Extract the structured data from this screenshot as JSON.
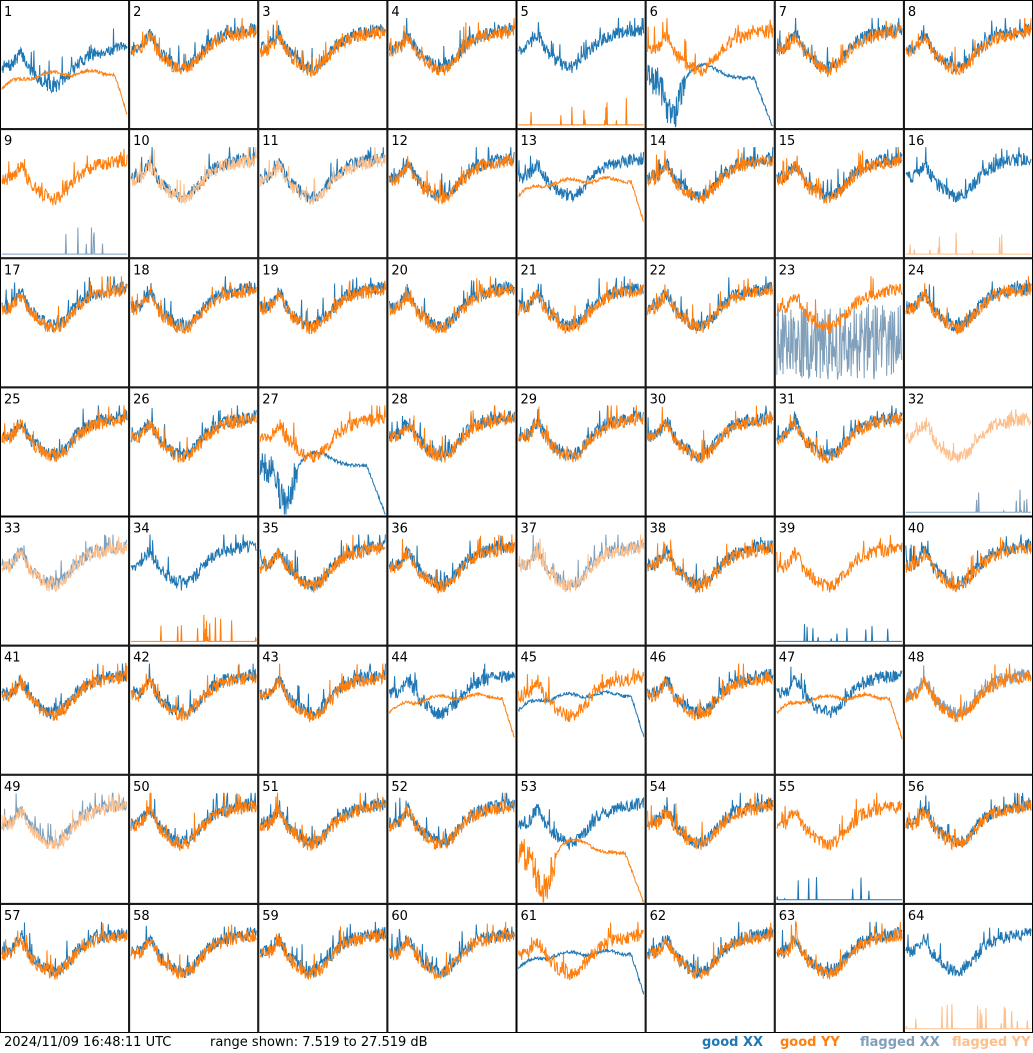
{
  "footer": {
    "timestamp": "2024/11/09 16:48:11 UTC",
    "range_text": "range shown: 7.519 to 27.519 dB"
  },
  "legend": [
    {
      "id": "good-xx",
      "label": "good XX",
      "color": "#1f77b4"
    },
    {
      "id": "good-yy",
      "label": "good YY",
      "color": "#ff7f0e"
    },
    {
      "id": "flagged-xx",
      "label": "flagged XX",
      "color": "#7f9fba"
    },
    {
      "id": "flagged-yy",
      "label": "flagged YY",
      "color": "#fdbf8c"
    }
  ],
  "chart_data": {
    "type": "line",
    "ylim": [
      7.519,
      27.519
    ],
    "units": "dB",
    "panel_labels": [
      "1",
      "2",
      "3",
      "4",
      "5",
      "6",
      "7",
      "8",
      "9",
      "10",
      "11",
      "12",
      "13",
      "14",
      "15",
      "16",
      "17",
      "18",
      "19",
      "20",
      "21",
      "22",
      "23",
      "24",
      "25",
      "26",
      "27",
      "28",
      "29",
      "30",
      "31",
      "32",
      "33",
      "34",
      "35",
      "36",
      "37",
      "38",
      "39",
      "40",
      "41",
      "42",
      "43",
      "44",
      "45",
      "46",
      "47",
      "48",
      "49",
      "50",
      "51",
      "52",
      "53",
      "54",
      "55",
      "56",
      "57",
      "58",
      "59",
      "60",
      "61",
      "62",
      "63",
      "64"
    ],
    "panels": [
      {
        "xx": "good",
        "yy": "good",
        "xx_level": 0.55,
        "yy_level": 0.5,
        "yy_shape": "decay"
      },
      {
        "xx": "good",
        "yy": "good"
      },
      {
        "xx": "good",
        "yy": "good"
      },
      {
        "xx": "good",
        "yy": "good"
      },
      {
        "xx": "good",
        "yy": "good",
        "yy_shape": "spikes"
      },
      {
        "xx": "good",
        "yy": "good",
        "xx_shape": "dip"
      },
      {
        "xx": "good",
        "yy": "good"
      },
      {
        "xx": "good",
        "yy": "good"
      },
      {
        "xx": "flagged",
        "yy": "good",
        "xx_shape": "spikes"
      },
      {
        "xx": "good",
        "yy": "flagged"
      },
      {
        "xx": "good",
        "yy": "flagged"
      },
      {
        "xx": "good",
        "yy": "good"
      },
      {
        "xx": "good",
        "yy": "good",
        "yy_shape": "decay"
      },
      {
        "xx": "good",
        "yy": "good"
      },
      {
        "xx": "good",
        "yy": "good"
      },
      {
        "xx": "good",
        "yy": "flagged",
        "yy_shape": "spikes"
      },
      {
        "xx": "good",
        "yy": "good"
      },
      {
        "xx": "good",
        "yy": "good"
      },
      {
        "xx": "good",
        "yy": "good"
      },
      {
        "xx": "good",
        "yy": "good"
      },
      {
        "xx": "good",
        "yy": "good"
      },
      {
        "xx": "good",
        "yy": "good"
      },
      {
        "xx": "flagged",
        "yy": "good",
        "xx_shape": "noisy"
      },
      {
        "xx": "good",
        "yy": "good"
      },
      {
        "xx": "good",
        "yy": "good"
      },
      {
        "xx": "good",
        "yy": "good"
      },
      {
        "xx": "good",
        "yy": "good",
        "xx_shape": "dip"
      },
      {
        "xx": "good",
        "yy": "good"
      },
      {
        "xx": "good",
        "yy": "good"
      },
      {
        "xx": "good",
        "yy": "good"
      },
      {
        "xx": "good",
        "yy": "good"
      },
      {
        "xx": "flagged",
        "yy": "flagged",
        "xx_shape": "spikes"
      },
      {
        "xx": "flagged",
        "yy": "flagged"
      },
      {
        "xx": "good",
        "yy": "good",
        "yy_shape": "spikes"
      },
      {
        "xx": "good",
        "yy": "good"
      },
      {
        "xx": "good",
        "yy": "good"
      },
      {
        "xx": "flagged",
        "yy": "flagged"
      },
      {
        "xx": "good",
        "yy": "good"
      },
      {
        "xx": "good",
        "yy": "good",
        "xx_shape": "spikes"
      },
      {
        "xx": "good",
        "yy": "good"
      },
      {
        "xx": "good",
        "yy": "good"
      },
      {
        "xx": "good",
        "yy": "good"
      },
      {
        "xx": "good",
        "yy": "good"
      },
      {
        "xx": "good",
        "yy": "good",
        "yy_shape": "decay"
      },
      {
        "xx": "good",
        "yy": "good",
        "xx_shape": "decay"
      },
      {
        "xx": "good",
        "yy": "good"
      },
      {
        "xx": "good",
        "yy": "good",
        "yy_shape": "decay"
      },
      {
        "xx": "flagged",
        "yy": "good"
      },
      {
        "xx": "flagged",
        "yy": "flagged"
      },
      {
        "xx": "good",
        "yy": "good"
      },
      {
        "xx": "good",
        "yy": "good"
      },
      {
        "xx": "good",
        "yy": "good"
      },
      {
        "xx": "good",
        "yy": "good",
        "yy_shape": "dip"
      },
      {
        "xx": "good",
        "yy": "good"
      },
      {
        "xx": "good",
        "yy": "good",
        "xx_shape": "spikes"
      },
      {
        "xx": "good",
        "yy": "good"
      },
      {
        "xx": "good",
        "yy": "good"
      },
      {
        "xx": "good",
        "yy": "good"
      },
      {
        "xx": "good",
        "yy": "good"
      },
      {
        "xx": "good",
        "yy": "good"
      },
      {
        "xx": "good",
        "yy": "good",
        "xx_shape": "decay"
      },
      {
        "xx": "good",
        "yy": "good"
      },
      {
        "xx": "good",
        "yy": "good"
      },
      {
        "xx": "good",
        "yy": "flagged",
        "yy_shape": "spikes"
      }
    ]
  }
}
